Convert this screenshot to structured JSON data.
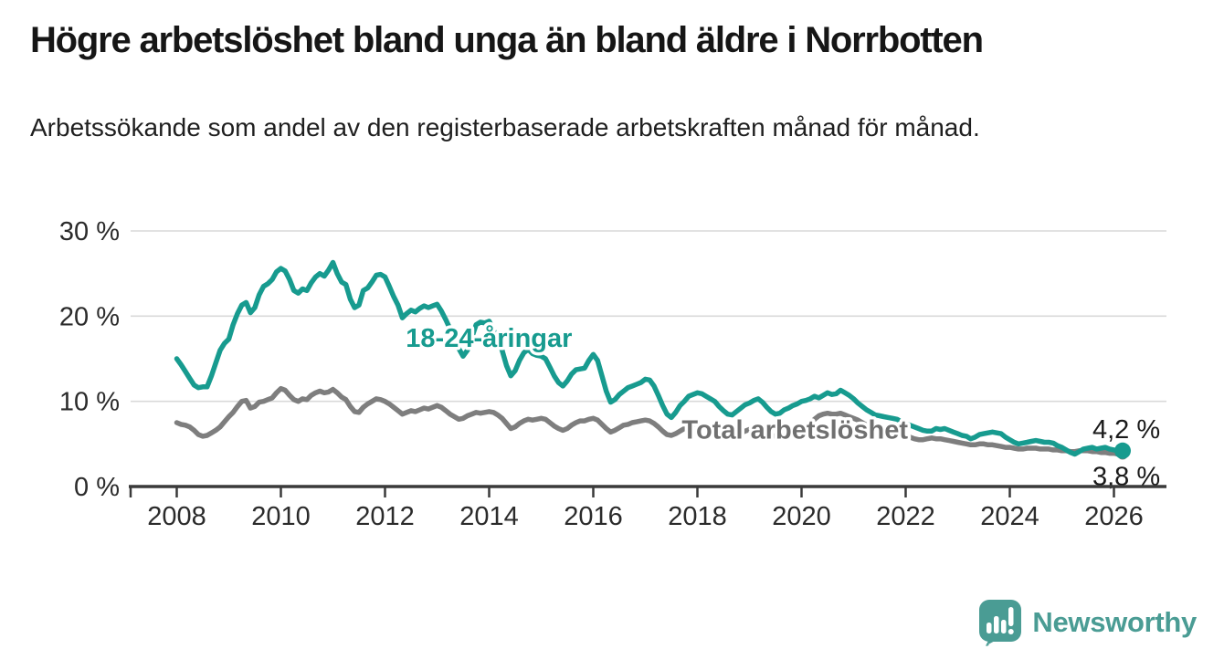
{
  "branding": {
    "name": "Newsworthy"
  },
  "colors": {
    "young_line": "#179b8f",
    "total_line": "#7e7e7e",
    "total_label": "#707070",
    "grid": "#d9d9d9",
    "axis": "#3a3a3a",
    "text": "#2b2b2b",
    "value_label": "#1a1a1a",
    "logo": "#4a9c94"
  },
  "chart_data": {
    "type": "line",
    "title": "Högre arbetslöshet bland unga än bland äldre i Norrbotten",
    "subtitle": "Arbetssökande som andel av den registerbaserade arbetskraften månad för månad.",
    "grid": "horizontal",
    "legend": "inline-labels",
    "x_axis": {
      "unit": "year",
      "resolution": "monthly",
      "min": 2007.1,
      "max": 2027.0,
      "ticks": [
        2008,
        2010,
        2012,
        2014,
        2016,
        2018,
        2020,
        2022,
        2024,
        2026
      ],
      "tick_labels": [
        "2008",
        "2010",
        "2012",
        "2014",
        "2016",
        "2018",
        "2020",
        "2022",
        "2024",
        "2026"
      ]
    },
    "y_axis": {
      "unit": "percent",
      "min": 0,
      "max": 30,
      "ticks": [
        0,
        10,
        20,
        30
      ],
      "tick_labels": [
        "0 %",
        "10 %",
        "20 %",
        "30 %"
      ]
    },
    "series": [
      {
        "id": "young",
        "label": "18-24-åringar",
        "color_key": "young_line",
        "end_value_label": "4,2 %",
        "label_pos": {
          "x": 2012.4,
          "y": 16.4
        },
        "start": 2008.0,
        "interval_years": 0.0833333,
        "values": [
          15.0,
          14.3,
          13.5,
          12.7,
          11.9,
          11.6,
          11.7,
          11.7,
          13.0,
          14.5,
          16.0,
          16.8,
          17.3,
          19.0,
          20.3,
          21.3,
          21.6,
          20.4,
          21.0,
          22.5,
          23.5,
          23.8,
          24.3,
          25.2,
          25.6,
          25.3,
          24.3,
          23.0,
          22.7,
          23.2,
          23.0,
          23.9,
          24.6,
          25.0,
          24.7,
          25.4,
          26.3,
          25.0,
          24.0,
          23.7,
          22.0,
          21.0,
          21.3,
          23.0,
          23.3,
          24.0,
          24.8,
          24.9,
          24.6,
          23.5,
          22.3,
          21.3,
          19.8,
          20.3,
          20.7,
          20.5,
          20.9,
          21.2,
          21.0,
          21.2,
          21.4,
          20.6,
          19.6,
          18.5,
          17.3,
          16.2,
          15.3,
          16.0,
          17.5,
          19.0,
          19.3,
          19.2,
          19.4,
          18.4,
          17.0,
          16.0,
          14.2,
          13.0,
          13.6,
          14.8,
          15.7,
          16.1,
          15.6,
          15.4,
          15.3,
          15.0,
          14.0,
          13.0,
          12.2,
          11.8,
          12.4,
          13.2,
          13.7,
          13.8,
          13.9,
          14.8,
          15.5,
          14.8,
          13.0,
          11.2,
          9.9,
          10.2,
          10.8,
          11.2,
          11.6,
          11.8,
          12.0,
          12.2,
          12.6,
          12.5,
          11.8,
          10.7,
          9.5,
          8.5,
          8.1,
          8.7,
          9.5,
          10.0,
          10.6,
          10.8,
          11.0,
          10.9,
          10.6,
          10.3,
          10.0,
          9.4,
          8.9,
          8.5,
          8.4,
          8.8,
          9.2,
          9.6,
          9.8,
          10.1,
          10.3,
          9.9,
          9.3,
          8.8,
          8.5,
          8.6,
          9.0,
          9.2,
          9.5,
          9.7,
          10.0,
          10.1,
          10.3,
          10.6,
          10.4,
          10.7,
          11.0,
          10.8,
          10.9,
          11.3,
          11.0,
          10.7,
          10.3,
          9.8,
          9.4,
          9.0,
          8.7,
          8.4,
          8.3,
          8.2,
          8.1,
          8.0,
          7.9,
          7.6,
          7.4,
          7.2,
          7.0,
          6.8,
          6.6,
          6.5,
          6.5,
          6.8,
          6.7,
          6.8,
          6.6,
          6.4,
          6.2,
          6.0,
          5.9,
          5.6,
          5.8,
          6.1,
          6.2,
          6.3,
          6.4,
          6.3,
          6.2,
          5.8,
          5.5,
          5.2,
          5.0,
          5.1,
          5.2,
          5.3,
          5.4,
          5.3,
          5.2,
          5.2,
          5.1,
          4.8,
          4.6,
          4.3,
          4.0,
          3.8,
          4.1,
          4.4,
          4.5,
          4.6,
          4.4,
          4.5,
          4.6,
          4.4,
          4.3,
          4.2,
          4.2
        ]
      },
      {
        "id": "total",
        "label": "Total arbetslöshet",
        "color_key": "total_line",
        "end_value_label": "3,8 %",
        "label_pos": {
          "x": 2017.7,
          "y": 5.6
        },
        "start": 2008.0,
        "interval_years": 0.0833333,
        "values": [
          7.5,
          7.3,
          7.2,
          7.0,
          6.6,
          6.1,
          5.9,
          6.0,
          6.3,
          6.6,
          7.0,
          7.6,
          8.2,
          8.7,
          9.4,
          10.0,
          10.1,
          9.2,
          9.4,
          9.9,
          10.0,
          10.2,
          10.4,
          11.0,
          11.5,
          11.3,
          10.7,
          10.2,
          10.0,
          10.3,
          10.2,
          10.7,
          11.0,
          11.2,
          11.0,
          11.1,
          11.4,
          11.0,
          10.5,
          10.2,
          9.4,
          8.8,
          8.7,
          9.3,
          9.7,
          10.0,
          10.3,
          10.2,
          10.0,
          9.7,
          9.3,
          8.9,
          8.5,
          8.7,
          8.9,
          8.8,
          9.0,
          9.2,
          9.1,
          9.3,
          9.5,
          9.3,
          8.9,
          8.5,
          8.2,
          7.9,
          8.0,
          8.3,
          8.5,
          8.7,
          8.6,
          8.7,
          8.8,
          8.7,
          8.4,
          8.0,
          7.4,
          6.8,
          7.0,
          7.4,
          7.7,
          7.9,
          7.8,
          7.9,
          8.0,
          7.9,
          7.5,
          7.1,
          6.8,
          6.6,
          6.8,
          7.2,
          7.5,
          7.7,
          7.7,
          7.9,
          8.0,
          7.8,
          7.3,
          6.8,
          6.4,
          6.6,
          6.9,
          7.2,
          7.3,
          7.5,
          7.6,
          7.7,
          7.8,
          7.7,
          7.4,
          7.0,
          6.5,
          6.1,
          6.0,
          6.2,
          6.5,
          6.8,
          7.0,
          7.1,
          7.2,
          7.1,
          6.9,
          6.6,
          6.3,
          6.0,
          5.8,
          5.8,
          5.9,
          6.1,
          6.3,
          6.5,
          6.7,
          6.8,
          6.8,
          6.6,
          6.3,
          6.0,
          5.9,
          6.0,
          6.2,
          6.4,
          6.5,
          6.7,
          6.9,
          7.0,
          7.3,
          7.9,
          8.3,
          8.5,
          8.6,
          8.5,
          8.5,
          8.6,
          8.4,
          8.2,
          8.0,
          7.8,
          7.5,
          7.2,
          6.9,
          6.6,
          6.4,
          6.2,
          6.1,
          6.0,
          5.9,
          5.9,
          5.9,
          5.8,
          5.6,
          5.5,
          5.5,
          5.6,
          5.7,
          5.6,
          5.6,
          5.5,
          5.4,
          5.3,
          5.2,
          5.1,
          5.0,
          4.9,
          4.9,
          5.0,
          5.0,
          4.9,
          4.9,
          4.8,
          4.7,
          4.6,
          4.6,
          4.5,
          4.4,
          4.4,
          4.5,
          4.5,
          4.5,
          4.4,
          4.4,
          4.4,
          4.3,
          4.3,
          4.2,
          4.2,
          4.1,
          4.1,
          4.2,
          4.2,
          4.2,
          4.1,
          4.1,
          4.0,
          4.0,
          3.9,
          3.9,
          3.8,
          3.8
        ]
      }
    ]
  }
}
